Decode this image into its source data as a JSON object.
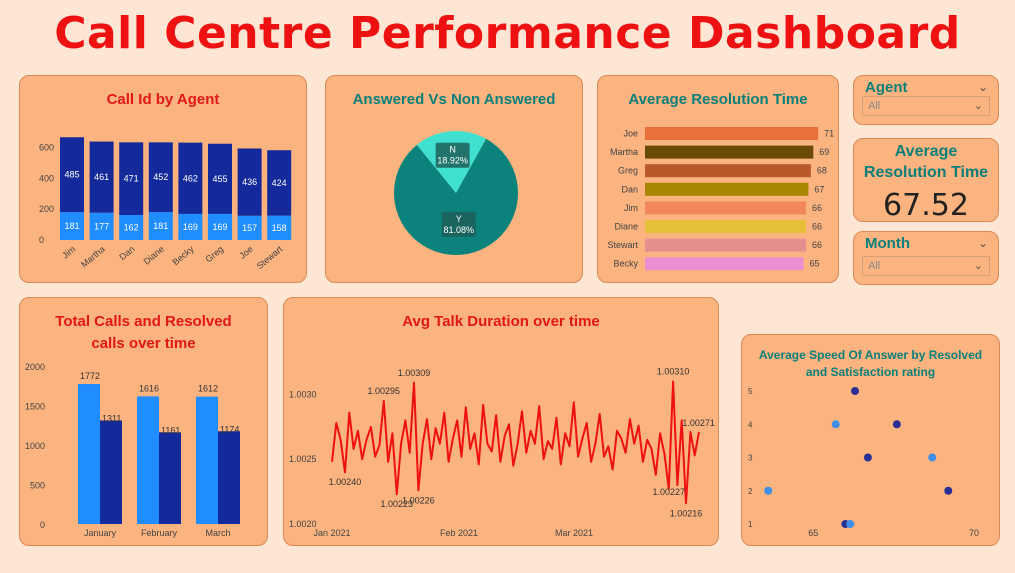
{
  "title": "Call Centre Performance Dashboard",
  "agent_slicer": {
    "label": "Agent",
    "value": "All"
  },
  "month_slicer": {
    "label": "Month",
    "value": "All"
  },
  "kpi": {
    "title_line1": "Average",
    "title_line2": "Resolution Time",
    "value": "67.52"
  },
  "colors": {
    "dark_blue": "#142a9a",
    "light_blue": "#1f8cff",
    "teal": "#0b837c",
    "light_teal": "#3fe0cf",
    "line_red": "#ee1111",
    "title_red": "#e01818",
    "title_teal": "#0b7f7a"
  },
  "chart_data": [
    {
      "id": "call_id_by_agent",
      "type": "bar",
      "title": "Call Id by Agent",
      "categories": [
        "Jim",
        "Martha",
        "Dan",
        "Diane",
        "Becky",
        "Greg",
        "Joe",
        "Stewart"
      ],
      "series": [
        {
          "values": [
            181,
            177,
            162,
            181,
            169,
            169,
            157,
            158
          ]
        },
        {
          "values": [
            485,
            461,
            471,
            452,
            462,
            455,
            436,
            424
          ]
        }
      ],
      "stacked": true,
      "yticks": [
        0,
        200,
        400,
        600
      ],
      "ylim": [
        0,
        700
      ]
    },
    {
      "id": "answered_vs_non_answered",
      "type": "pie",
      "title": "Answered Vs Non Answered",
      "labels": [
        "Y",
        "N"
      ],
      "values": [
        81.08,
        18.92
      ],
      "value_labels": [
        "81.08%",
        "18.92%"
      ]
    },
    {
      "id": "avg_resolution_time",
      "type": "bar",
      "orientation": "horizontal",
      "title": "Average Resolution Time",
      "categories": [
        "Joe",
        "Martha",
        "Greg",
        "Dan",
        "Jim",
        "Diane",
        "Stewart",
        "Becky"
      ],
      "values": [
        71,
        69,
        68,
        67,
        66,
        66,
        66,
        65
      ],
      "colors": [
        "#e8703a",
        "#6b4a05",
        "#b8592a",
        "#a88705",
        "#f2875a",
        "#e7c03a",
        "#e58f8f",
        "#ea8fcf"
      ]
    },
    {
      "id": "total_vs_resolved",
      "type": "bar",
      "title_line1": "Total Calls and Resolved",
      "title_line2": "calls over time",
      "categories": [
        "January",
        "February",
        "March"
      ],
      "series": [
        {
          "values": [
            1772,
            1616,
            1612
          ]
        },
        {
          "values": [
            1311,
            1161,
            1174
          ]
        }
      ],
      "yticks": [
        0,
        500,
        1000,
        1500,
        2000
      ],
      "ylim": [
        0,
        2000
      ]
    },
    {
      "id": "avg_talk_duration",
      "type": "line",
      "title": "Avg Talk Duration over time",
      "xticks": [
        "Jan 2021",
        "Feb 2021",
        "Mar 2021"
      ],
      "yticks": [
        "1.0020",
        "1.0025",
        "1.0030"
      ],
      "ylim": [
        1.002,
        1.00322
      ],
      "values": [
        1.00248,
        1.00278,
        1.00265,
        1.0024,
        1.00286,
        1.00258,
        1.00272,
        1.0025,
        1.00265,
        1.00275,
        1.00252,
        1.00261,
        1.00295,
        1.00248,
        1.0027,
        1.00223,
        1.00262,
        1.0028,
        1.00255,
        1.00309,
        1.00226,
        1.00262,
        1.00281,
        1.0025,
        1.00274,
        1.00262,
        1.00286,
        1.00248,
        1.00266,
        1.0028,
        1.00252,
        1.0029,
        1.00258,
        1.0027,
        1.00246,
        1.00292,
        1.00262,
        1.00256,
        1.00284,
        1.00248,
        1.00268,
        1.00277,
        1.00245,
        1.00262,
        1.00287,
        1.00255,
        1.00272,
        1.00262,
        1.00291,
        1.0025,
        1.00264,
        1.00258,
        1.00282,
        1.00246,
        1.0027,
        1.0026,
        1.00294,
        1.00252,
        1.00266,
        1.00278,
        1.00248,
        1.00262,
        1.00285,
        1.00252,
        1.0026,
        1.00242,
        1.00272,
        1.00266,
        1.00255,
        1.00281,
        1.00262,
        1.00276,
        1.00248,
        1.00265,
        1.00258,
        1.00238,
        1.0027,
        1.00254,
        1.00227,
        1.0031,
        1.0023,
        1.0028,
        1.00216,
        1.00271,
        1.00253,
        1.00271
      ],
      "point_labels": [
        {
          "index": 3,
          "text": "1.00240"
        },
        {
          "index": 12,
          "text": "1.00295"
        },
        {
          "index": 15,
          "text": "1.00223"
        },
        {
          "index": 19,
          "text": "1.00309"
        },
        {
          "index": 20,
          "text": "1.00226"
        },
        {
          "index": 78,
          "text": "1.00227"
        },
        {
          "index": 79,
          "text": "1.00310"
        },
        {
          "index": 82,
          "text": "1.00216"
        },
        {
          "index": 83,
          "text": "1.00271"
        }
      ]
    },
    {
      "id": "speed_of_answer_scatter",
      "type": "scatter",
      "title_line1": "Average Speed Of Answer by Resolved",
      "title_line2": "and Satisfaction rating",
      "xticks": [
        65,
        70
      ],
      "yticks": [
        1,
        2,
        3,
        4,
        5
      ],
      "xlim": [
        63.5,
        70
      ],
      "ylim": [
        1,
        5
      ],
      "points": [
        {
          "x": 63.6,
          "y": 2,
          "group": "light"
        },
        {
          "x": 65.7,
          "y": 4,
          "group": "light"
        },
        {
          "x": 66.0,
          "y": 1,
          "group": "dark"
        },
        {
          "x": 66.15,
          "y": 1,
          "group": "light"
        },
        {
          "x": 66.3,
          "y": 5,
          "group": "dark"
        },
        {
          "x": 66.7,
          "y": 3,
          "group": "dark"
        },
        {
          "x": 67.6,
          "y": 4,
          "group": "dark"
        },
        {
          "x": 68.7,
          "y": 3,
          "group": "light"
        },
        {
          "x": 69.2,
          "y": 2,
          "group": "dark"
        }
      ],
      "group_colors": {
        "light": "#3f8fe8",
        "dark": "#2a2f96"
      }
    }
  ]
}
